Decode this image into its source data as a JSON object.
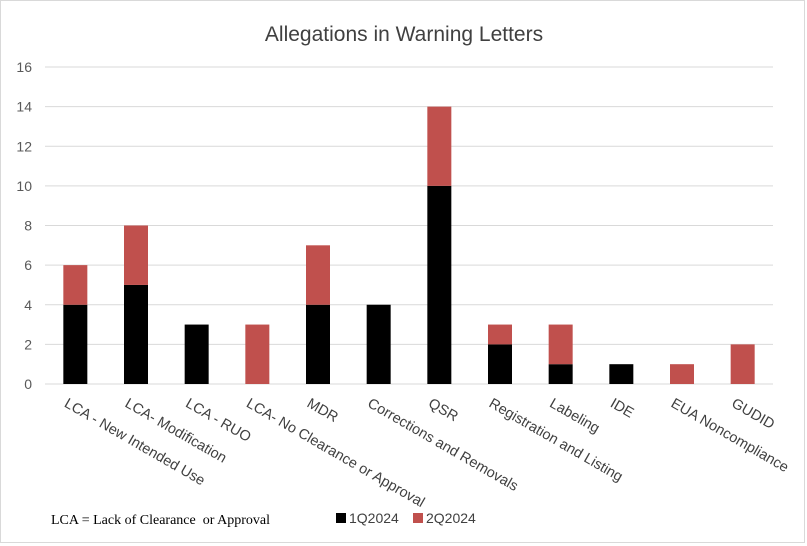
{
  "chart_data": {
    "type": "bar",
    "stacked": true,
    "title": "Allegations in Warning Letters",
    "xlabel": "",
    "ylabel": "",
    "ylim": [
      0,
      16
    ],
    "yticks": [
      0,
      2,
      4,
      6,
      8,
      10,
      12,
      14,
      16
    ],
    "grid": true,
    "legend_position": "bottom",
    "footnote": "LCA = Lack of Clearance  or Approval",
    "categories": [
      "LCA - New Intended Use",
      "LCA- Modification",
      "LCA - RUO",
      "LCA- No Clearance or Approval",
      "MDR",
      "Corrections and Removals",
      "QSR",
      "Registration and Listing",
      "Labeling",
      "IDE",
      "EUA Noncompliance",
      "GUDID"
    ],
    "series": [
      {
        "name": "1Q2024",
        "color": "#000000",
        "values": [
          4,
          5,
          3,
          0,
          4,
          4,
          10,
          2,
          1,
          1,
          0,
          0
        ]
      },
      {
        "name": "2Q2024",
        "color": "#c0504d",
        "values": [
          2,
          3,
          0,
          3,
          3,
          0,
          4,
          1,
          2,
          0,
          1,
          2
        ]
      }
    ]
  }
}
